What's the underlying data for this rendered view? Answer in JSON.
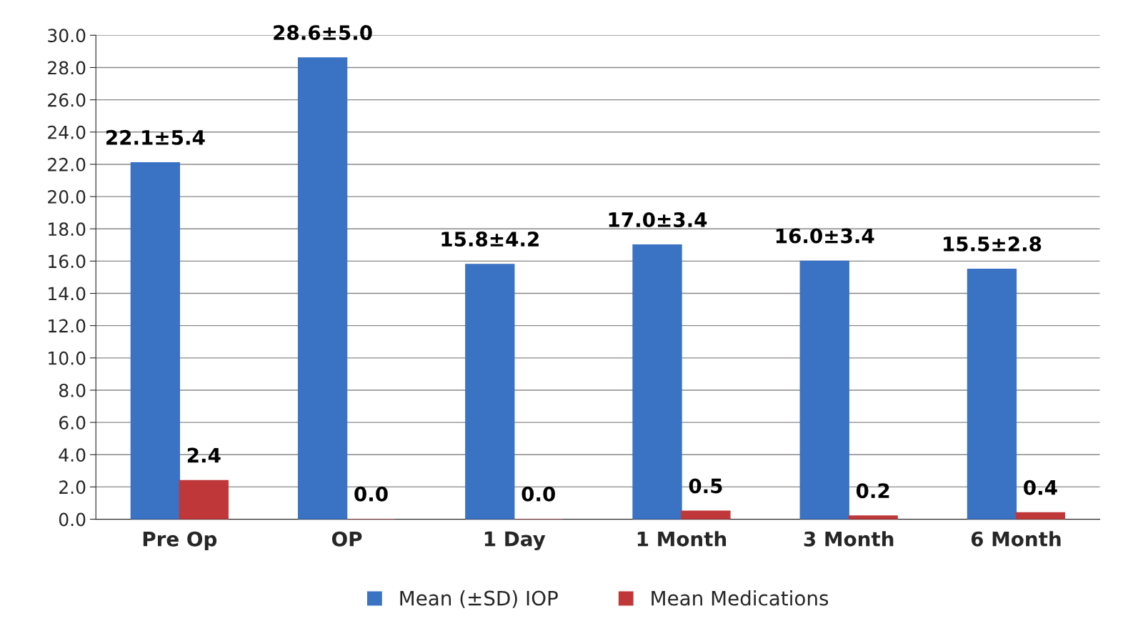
{
  "chart_data": {
    "type": "bar",
    "categories": [
      "Pre Op",
      "OP",
      "1 Day",
      "1 Month",
      "3 Month",
      "6 Month"
    ],
    "series": [
      {
        "name": "Mean (±SD) IOP",
        "color": "#3a72c4",
        "values": [
          22.1,
          28.6,
          15.8,
          17.0,
          16.0,
          15.5
        ],
        "value_labels": [
          "22.1±5.4",
          "28.6±5.0",
          "15.8±4.2",
          "17.0±3.4",
          "16.0±3.4",
          "15.5±2.8"
        ]
      },
      {
        "name": "Mean Medications",
        "color": "#c0373a",
        "values": [
          2.4,
          0.0,
          0.0,
          0.5,
          0.2,
          0.4
        ],
        "value_labels": [
          "2.4",
          "0.0",
          "0.0",
          "0.5",
          "0.2",
          "0.4"
        ]
      }
    ],
    "ylim": [
      0,
      30
    ],
    "yticks": [
      {
        "value": 0,
        "label": "0.0"
      },
      {
        "value": 2,
        "label": "2.0"
      },
      {
        "value": 4,
        "label": "4.0"
      },
      {
        "value": 6,
        "label": "6.0"
      },
      {
        "value": 8,
        "label": "8.0"
      },
      {
        "value": 10,
        "label": "10.0"
      },
      {
        "value": 12,
        "label": "12.0"
      },
      {
        "value": 14,
        "label": "14.0"
      },
      {
        "value": 16,
        "label": "16.0"
      },
      {
        "value": 18,
        "label": "18.0"
      },
      {
        "value": 20,
        "label": "20.0"
      },
      {
        "value": 22,
        "label": "22.0"
      },
      {
        "value": 24,
        "label": "24.0"
      },
      {
        "value": 26,
        "label": "26.0"
      },
      {
        "value": 28,
        "label": "28.0"
      },
      {
        "value": 30,
        "label": "30.0"
      }
    ],
    "grid": "y",
    "legend": "bottom"
  }
}
